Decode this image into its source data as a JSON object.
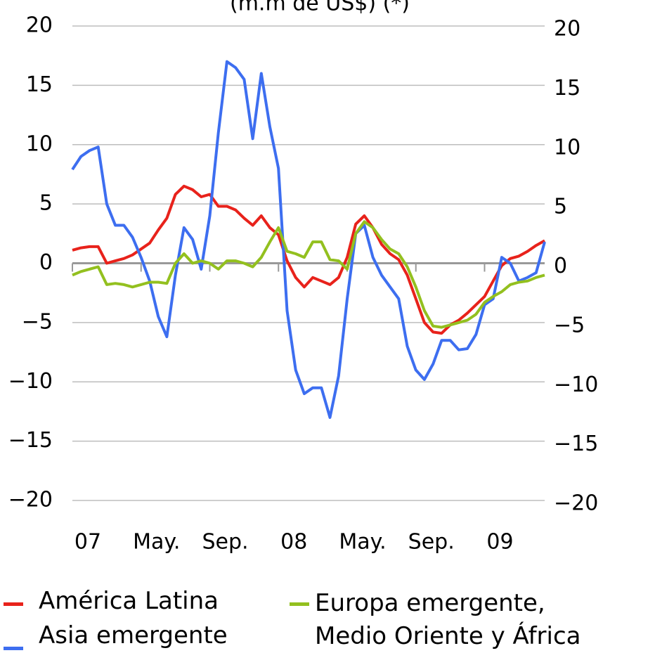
{
  "chart_data": {
    "type": "line",
    "subtitle": "(m.m de US$) (*)",
    "x": [
      0,
      0.5,
      1,
      1.5,
      2,
      2.5,
      3,
      3.5,
      4,
      4.5,
      5,
      5.5,
      6,
      6.5,
      7,
      7.5,
      8,
      8.5,
      9,
      9.5,
      10,
      10.5,
      11,
      11.5,
      12,
      12.5,
      13,
      13.5,
      14,
      14.5,
      15,
      15.5,
      16,
      16.5,
      17,
      17.5,
      18,
      18.5,
      19,
      19.5,
      20,
      20.5,
      21,
      21.5,
      22,
      22.5,
      23,
      23.5,
      24,
      24.5,
      25,
      25.5,
      26,
      26.5,
      27,
      27.5
    ],
    "xlim": [
      0,
      27.5
    ],
    "xticks": [
      {
        "value": 0,
        "label": "07"
      },
      {
        "value": 4,
        "label": "May."
      },
      {
        "value": 8,
        "label": "Sep."
      },
      {
        "value": 12,
        "label": "08"
      },
      {
        "value": 16,
        "label": "May."
      },
      {
        "value": 20,
        "label": "Sep."
      },
      {
        "value": 24,
        "label": "09"
      }
    ],
    "ylim": [
      -20,
      20
    ],
    "yticks": [
      20,
      15,
      10,
      5,
      0,
      {
        "value": -5,
        "label": "−5"
      },
      {
        "value": -10,
        "label": "−10"
      },
      {
        "value": -15,
        "label": "−15"
      },
      {
        "value": -20,
        "label": "−20"
      }
    ],
    "y2lim": [
      -20,
      20
    ],
    "y2ticks": [
      20,
      15,
      10,
      5,
      0,
      {
        "value": -5,
        "label": "−5"
      },
      {
        "value": -10,
        "label": "−10"
      },
      {
        "value": -15,
        "label": "−15"
      },
      {
        "value": -20,
        "label": "−20"
      }
    ],
    "grid": true,
    "series": [
      {
        "name": "América Latina",
        "color": "#e8221b",
        "values": [
          1.1,
          1.3,
          1.4,
          1.4,
          0.0,
          0.2,
          0.4,
          0.7,
          1.2,
          1.7,
          2.8,
          3.8,
          5.8,
          6.5,
          6.2,
          5.6,
          5.8,
          4.8,
          4.8,
          4.5,
          3.8,
          3.2,
          4.0,
          3.0,
          2.4,
          0.2,
          -1.2,
          -2.0,
          -1.2,
          -1.5,
          -1.8,
          -1.2,
          0.5,
          3.3,
          4.0,
          3.0,
          1.6,
          0.8,
          0.3,
          -1.0,
          -3.0,
          -5.0,
          -5.8,
          -5.9,
          -5.2,
          -4.8,
          -4.2,
          -3.5,
          -2.8,
          -1.5,
          -0.2,
          0.4,
          0.6,
          1.0,
          1.5,
          1.9
        ]
      },
      {
        "name": "Asia emergente",
        "color": "#3d6ef0",
        "values": [
          7.9,
          9.0,
          9.5,
          9.8,
          5.0,
          3.2,
          3.2,
          2.2,
          0.5,
          -1.5,
          -4.5,
          -6.2,
          -1.0,
          3.0,
          2.0,
          -0.5,
          4.0,
          11.0,
          17.0,
          16.5,
          15.5,
          10.5,
          16.0,
          11.5,
          8.0,
          -4.0,
          -9.0,
          -11.0,
          -10.5,
          -10.5,
          -13.0,
          -9.5,
          -3.0,
          2.5,
          3.2,
          0.5,
          -1.0,
          -2.0,
          -3.0,
          -7.0,
          -9.0,
          -9.8,
          -8.5,
          -6.5,
          -6.5,
          -7.3,
          -7.2,
          -6.0,
          -3.5,
          -3.0,
          0.5,
          0.0,
          -1.5,
          -1.2,
          -0.8,
          1.8
        ]
      },
      {
        "name": "Europa emergente, Medio Oriente y África",
        "color": "#93c01f",
        "values": [
          -1.0,
          -0.7,
          -0.5,
          -0.3,
          -1.8,
          -1.7,
          -1.8,
          -2.0,
          -1.8,
          -1.6,
          -1.6,
          -1.7,
          0.0,
          0.8,
          0.0,
          0.2,
          0.0,
          -0.5,
          0.2,
          0.2,
          0.0,
          -0.3,
          0.5,
          1.8,
          3.0,
          1.0,
          0.8,
          0.5,
          1.8,
          1.8,
          0.3,
          0.2,
          -0.5,
          2.5,
          3.5,
          3.0,
          2.0,
          1.2,
          0.8,
          -0.3,
          -2.0,
          -4.0,
          -5.3,
          -5.4,
          -5.2,
          -5.0,
          -4.8,
          -4.3,
          -3.3,
          -2.8,
          -2.4,
          -1.8,
          -1.6,
          -1.5,
          -1.2,
          -1.0
        ]
      }
    ]
  }
}
